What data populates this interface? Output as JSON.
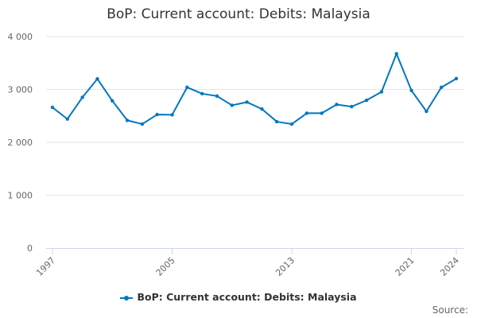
{
  "chart_data": {
    "type": "line",
    "title": "BoP: Current account: Debits: Malaysia",
    "x": [
      1997,
      1998,
      1999,
      2000,
      2001,
      2002,
      2003,
      2004,
      2005,
      2006,
      2007,
      2008,
      2009,
      2010,
      2011,
      2012,
      2013,
      2014,
      2015,
      2016,
      2017,
      2018,
      2019,
      2020,
      2021,
      2022,
      2023,
      2024
    ],
    "series": [
      {
        "name": "BoP: Current account: Debits: Malaysia",
        "color": "#0077c0",
        "values": [
          2660,
          2440,
          2850,
          3200,
          2785,
          2415,
          2345,
          2525,
          2520,
          3040,
          2920,
          2875,
          2700,
          2760,
          2630,
          2390,
          2345,
          2550,
          2550,
          2715,
          2675,
          2795,
          2955,
          3675,
          2980,
          2585,
          3040,
          3205
        ]
      }
    ],
    "x_ticks": [
      "1997",
      "2005",
      "2013",
      "2021",
      "2024"
    ],
    "y_ticks": [
      "0",
      "1 000",
      "2 000",
      "3 000",
      "4 000"
    ],
    "y_tick_values": [
      0,
      1000,
      2000,
      3000,
      4000
    ],
    "ylim": [
      0,
      4000
    ],
    "xlim": [
      1997,
      2024
    ],
    "grid": true,
    "legend_position": "bottom",
    "source_label": "Source:"
  }
}
